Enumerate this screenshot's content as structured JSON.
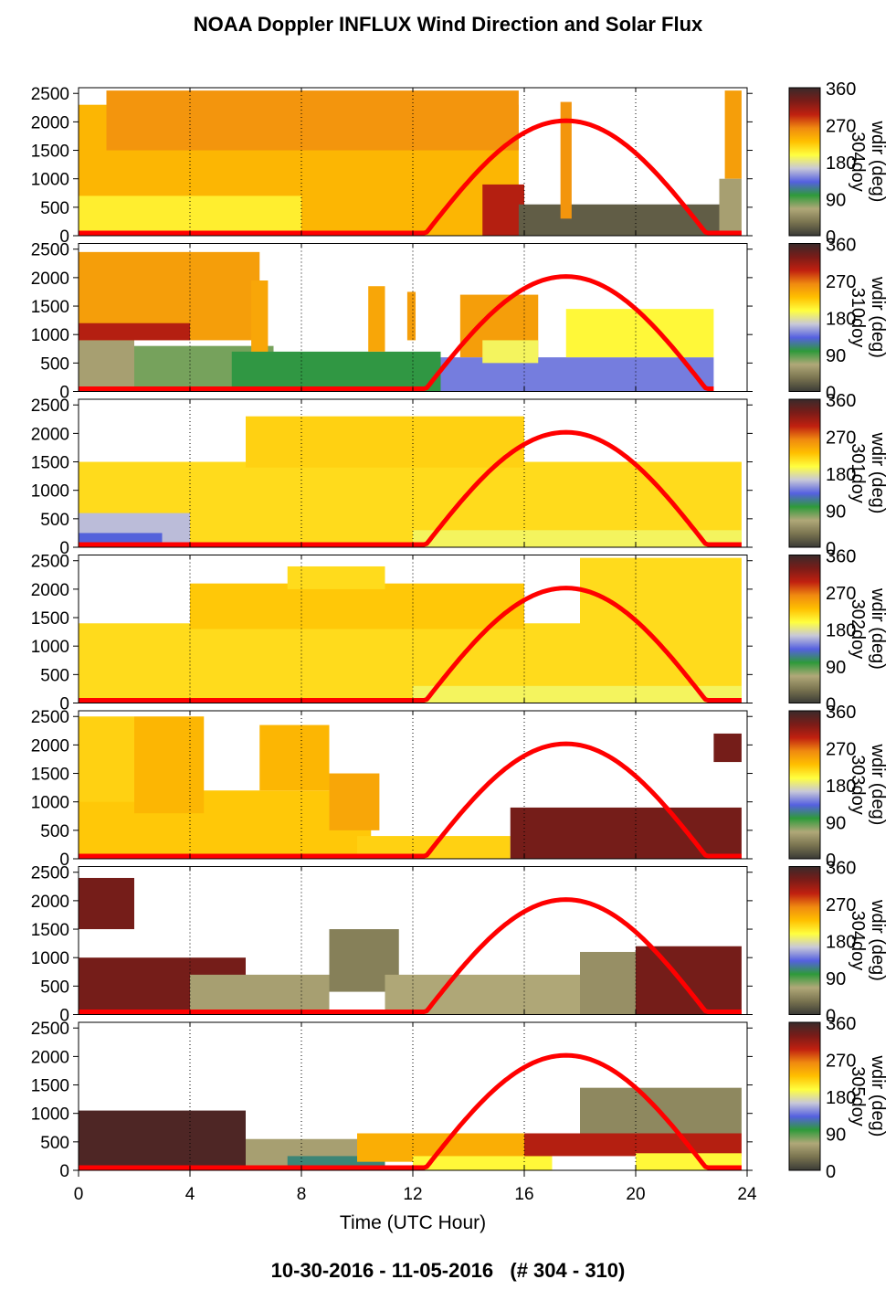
{
  "title": "NOAA Doppler INFLUX Wind Direction and Solar Flux",
  "footer": "10-30-2016 - 11-05-2016   (# 304 - 310)",
  "colors": {
    "flux_line": "#ff0000",
    "colormap": [
      "#3a3a36",
      "#7a7450",
      "#b0a878",
      "#2e9a3a",
      "#5560e0",
      "#c8c8d8",
      "#ffff40",
      "#ffc000",
      "#f08a10",
      "#c02010",
      "#7a1c18",
      "#3a2a2a"
    ]
  },
  "chart_data": {
    "type": "heatmap",
    "xlabel": "Time (UTC Hour)",
    "xlim": [
      0,
      24
    ],
    "xticks": [
      0,
      4,
      8,
      12,
      16,
      20,
      24
    ],
    "x_gridlines": [
      4,
      8,
      12,
      16,
      20
    ],
    "ylim": [
      0,
      2600
    ],
    "yticks": [
      0,
      500,
      1000,
      1500,
      2000,
      2500
    ],
    "colorbar": {
      "label": "wdir (deg)",
      "range": [
        0,
        360
      ],
      "ticks": [
        0,
        90,
        180,
        270,
        360
      ]
    },
    "solar_flux": {
      "sunrise_hour": 12.4,
      "noon_hour": 17.5,
      "sunset_hour": 22.6,
      "peak_on_y_axis": 2020
    },
    "panels": [
      {
        "day_label": "304doy",
        "data_end_hour": 23.8,
        "regions": [
          {
            "x": [
              0,
              15.8
            ],
            "y": [
              0,
              2300
            ],
            "wdir_deg": 235
          },
          {
            "x": [
              1.0,
              15.8
            ],
            "y": [
              1500,
              2550
            ],
            "wdir_deg": 255
          },
          {
            "x": [
              0,
              8
            ],
            "y": [
              0,
              700
            ],
            "wdir_deg": 205
          },
          {
            "x": [
              14.5,
              16
            ],
            "y": [
              0,
              900
            ],
            "wdir_deg": 300
          },
          {
            "x": [
              15.8,
              23.0
            ],
            "y": [
              0,
              550
            ],
            "wdir_deg": 20
          },
          {
            "x": [
              17.3,
              17.7
            ],
            "y": [
              300,
              2350
            ],
            "wdir_deg": 255
          },
          {
            "x": [
              23.2,
              23.8
            ],
            "y": [
              1000,
              2550
            ],
            "wdir_deg": 250
          },
          {
            "x": [
              23.0,
              23.8
            ],
            "y": [
              0,
              1000
            ],
            "wdir_deg": 60
          }
        ]
      },
      {
        "day_label": "310doy",
        "data_end_hour": 22.8,
        "regions": [
          {
            "x": [
              0,
              2
            ],
            "y": [
              0,
              900
            ],
            "wdir_deg": 60
          },
          {
            "x": [
              2,
              7
            ],
            "y": [
              0,
              800
            ],
            "wdir_deg": 80
          },
          {
            "x": [
              5.5,
              13
            ],
            "y": [
              0,
              700
            ],
            "wdir_deg": 100
          },
          {
            "x": [
              13,
              22.8
            ],
            "y": [
              0,
              600
            ],
            "wdir_deg": 140
          },
          {
            "x": [
              0,
              6.5
            ],
            "y": [
              900,
              2450
            ],
            "wdir_deg": 250
          },
          {
            "x": [
              0,
              4
            ],
            "y": [
              900,
              1200
            ],
            "wdir_deg": 300
          },
          {
            "x": [
              6.2,
              6.8
            ],
            "y": [
              700,
              1950
            ],
            "wdir_deg": 245
          },
          {
            "x": [
              10.4,
              11.0
            ],
            "y": [
              700,
              1850
            ],
            "wdir_deg": 245
          },
          {
            "x": [
              11.8,
              12.1
            ],
            "y": [
              900,
              1750
            ],
            "wdir_deg": 250
          },
          {
            "x": [
              13.7,
              16.5
            ],
            "y": [
              600,
              1700
            ],
            "wdir_deg": 250
          },
          {
            "x": [
              14.5,
              16.5
            ],
            "y": [
              500,
              900
            ],
            "wdir_deg": 190
          },
          {
            "x": [
              17.5,
              22.8
            ],
            "y": [
              600,
              1450
            ],
            "wdir_deg": 200
          }
        ]
      },
      {
        "day_label": "301doy",
        "data_end_hour": 23.8,
        "regions": [
          {
            "x": [
              0,
              23.8
            ],
            "y": [
              0,
              1500
            ],
            "wdir_deg": 215
          },
          {
            "x": [
              6,
              16
            ],
            "y": [
              1400,
              2300
            ],
            "wdir_deg": 220
          },
          {
            "x": [
              0,
              4
            ],
            "y": [
              0,
              600
            ],
            "wdir_deg": 160
          },
          {
            "x": [
              0,
              3
            ],
            "y": [
              0,
              250
            ],
            "wdir_deg": 130
          },
          {
            "x": [
              12,
              23.8
            ],
            "y": [
              0,
              300
            ],
            "wdir_deg": 190
          }
        ]
      },
      {
        "day_label": "302doy",
        "data_end_hour": 23.8,
        "regions": [
          {
            "x": [
              0,
              23.8
            ],
            "y": [
              0,
              1400
            ],
            "wdir_deg": 215
          },
          {
            "x": [
              4,
              16
            ],
            "y": [
              1300,
              2100
            ],
            "wdir_deg": 225
          },
          {
            "x": [
              7.5,
              11
            ],
            "y": [
              2000,
              2400
            ],
            "wdir_deg": 215
          },
          {
            "x": [
              18,
              23.8
            ],
            "y": [
              1300,
              2550
            ],
            "wdir_deg": 215
          },
          {
            "x": [
              12,
              23.8
            ],
            "y": [
              0,
              300
            ],
            "wdir_deg": 190
          }
        ]
      },
      {
        "day_label": "303doy",
        "data_end_hour": 23.8,
        "regions": [
          {
            "x": [
              0,
              10.5
            ],
            "y": [
              0,
              1200
            ],
            "wdir_deg": 225
          },
          {
            "x": [
              0,
              2
            ],
            "y": [
              1000,
              2500
            ],
            "wdir_deg": 220
          },
          {
            "x": [
              2,
              4.5
            ],
            "y": [
              800,
              2500
            ],
            "wdir_deg": 235
          },
          {
            "x": [
              6.5,
              9
            ],
            "y": [
              1200,
              2350
            ],
            "wdir_deg": 235
          },
          {
            "x": [
              9,
              10.8
            ],
            "y": [
              500,
              1500
            ],
            "wdir_deg": 245
          },
          {
            "x": [
              10,
              15.5
            ],
            "y": [
              0,
              400
            ],
            "wdir_deg": 220
          },
          {
            "x": [
              15.5,
              23.8
            ],
            "y": [
              0,
              900
            ],
            "wdir_deg": 330
          },
          {
            "x": [
              22.8,
              23.8
            ],
            "y": [
              1700,
              2200
            ],
            "wdir_deg": 330
          }
        ]
      },
      {
        "day_label": "304doy",
        "data_end_hour": 23.8,
        "regions": [
          {
            "x": [
              0,
              6
            ],
            "y": [
              0,
              1000
            ],
            "wdir_deg": 330
          },
          {
            "x": [
              0,
              2
            ],
            "y": [
              1500,
              2400
            ],
            "wdir_deg": 330
          },
          {
            "x": [
              4,
              9
            ],
            "y": [
              0,
              700
            ],
            "wdir_deg": 60
          },
          {
            "x": [
              9,
              11.5
            ],
            "y": [
              400,
              1500
            ],
            "wdir_deg": 40
          },
          {
            "x": [
              11,
              18
            ],
            "y": [
              0,
              700
            ],
            "wdir_deg": 65
          },
          {
            "x": [
              18,
              20
            ],
            "y": [
              0,
              1100
            ],
            "wdir_deg": 50
          },
          {
            "x": [
              20,
              23.8
            ],
            "y": [
              0,
              1200
            ],
            "wdir_deg": 330
          }
        ]
      },
      {
        "day_label": "305doy",
        "data_end_hour": 23.8,
        "regions": [
          {
            "x": [
              0,
              6
            ],
            "y": [
              0,
              1050
            ],
            "wdir_deg": 350
          },
          {
            "x": [
              6,
              10
            ],
            "y": [
              0,
              550
            ],
            "wdir_deg": 60
          },
          {
            "x": [
              7.5,
              11
            ],
            "y": [
              0,
              250
            ],
            "wdir_deg": 110
          },
          {
            "x": [
              10,
              17
            ],
            "y": [
              150,
              650
            ],
            "wdir_deg": 240
          },
          {
            "x": [
              12,
              17
            ],
            "y": [
              0,
              250
            ],
            "wdir_deg": 200
          },
          {
            "x": [
              16,
              23.8
            ],
            "y": [
              250,
              650
            ],
            "wdir_deg": 300
          },
          {
            "x": [
              18,
              23.8
            ],
            "y": [
              650,
              1450
            ],
            "wdir_deg": 45
          },
          {
            "x": [
              20,
              23.8
            ],
            "y": [
              0,
              300
            ],
            "wdir_deg": 200
          }
        ]
      }
    ]
  }
}
